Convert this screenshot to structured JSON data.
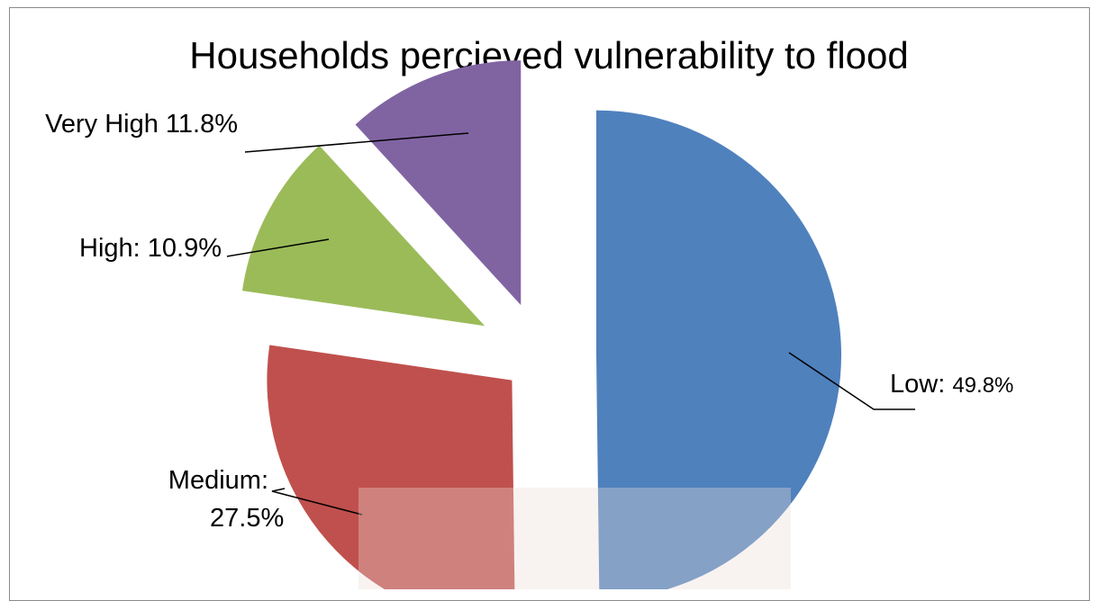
{
  "chart_data": {
    "type": "pie",
    "title": "Households percieved vulnerability to flood",
    "slices": [
      {
        "category": "Low",
        "value": 49.8,
        "label_name": "Low:",
        "label_value": "49.8%",
        "color": "#4f81bd"
      },
      {
        "category": "Medium",
        "value": 27.5,
        "label_name": "Medium:",
        "label_value": "27.5%",
        "color": "#c0504d"
      },
      {
        "category": "High",
        "value": 10.9,
        "label_name": "High:",
        "label_value": "10.9%",
        "color": "#9bbb59"
      },
      {
        "category": "Very High",
        "value": 11.8,
        "label_name": "Very High",
        "label_value": "11.8%",
        "color": "#8064a2"
      }
    ],
    "exploded": true,
    "legend": "none"
  }
}
